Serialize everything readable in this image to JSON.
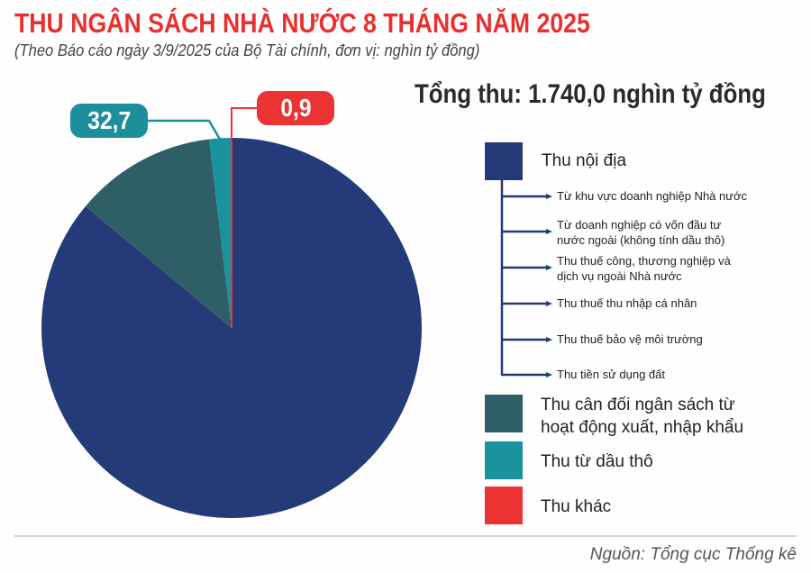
{
  "header": {
    "title": "THU NGÂN SÁCH NHÀ NƯỚC 8 THÁNG NĂM 2025",
    "subtitle": "(Theo Báo cáo ngày 3/9/2025 của Bộ Tài chính, đơn vị: nghìn tỷ đồng)"
  },
  "total_label": "Tổng thu: 1.740,0 nghìn tỷ đồng",
  "callouts": {
    "crude_oil": "32,7",
    "other": "0,9"
  },
  "legend": {
    "domestic": {
      "label": "Thu nội địa",
      "color": "#253a78",
      "sub_items": [
        "Từ khu vực doanh nghiệp Nhà nước",
        "Từ doanh nghiệp có vốn đầu tư\nnước ngoài (không tính dầu thô)",
        "Thu thuế công, thương nghiệp và\ndịch vụ ngoài Nhà nước",
        "Thu thuế thu nhập cá nhân",
        "Thu thuế bảo vệ môi trường",
        "Thu tiền sử dụng đất"
      ]
    },
    "import_export": {
      "label": "Thu cân đối ngân sách từ\nhoạt động xuất, nhập khẩu",
      "color": "#2e5f66"
    },
    "crude_oil": {
      "label": "Thu từ dầu thô",
      "color": "#1a939f"
    },
    "other": {
      "label": "Thu khác",
      "color": "#ec3333"
    }
  },
  "footer": {
    "source": "Nguồn: Tổng cục Thống kê"
  },
  "chart_data": {
    "type": "pie",
    "title": "THU NGÂN SÁCH NHÀ NƯỚC 8 THÁNG NĂM 2025",
    "subtitle": "(Theo Báo cáo ngày 3/9/2025 của Bộ Tài chính, đơn vị: nghìn tỷ đồng)",
    "unit": "nghìn tỷ đồng",
    "total": 1740.0,
    "categories": [
      "Thu nội địa",
      "Thu cân đối ngân sách từ hoạt động xuất, nhập khẩu",
      "Thu từ dầu thô",
      "Thu khác"
    ],
    "values": [
      1496.4,
      210.0,
      32.7,
      0.9
    ],
    "labeled_values": {
      "Thu từ dầu thô": 32.7,
      "Thu khác": 0.9
    },
    "colors": [
      "#253a78",
      "#2e5f66",
      "#1a939f",
      "#ec3333"
    ],
    "legend_position": "right",
    "source": "Nguồn: Tổng cục Thống kê"
  }
}
